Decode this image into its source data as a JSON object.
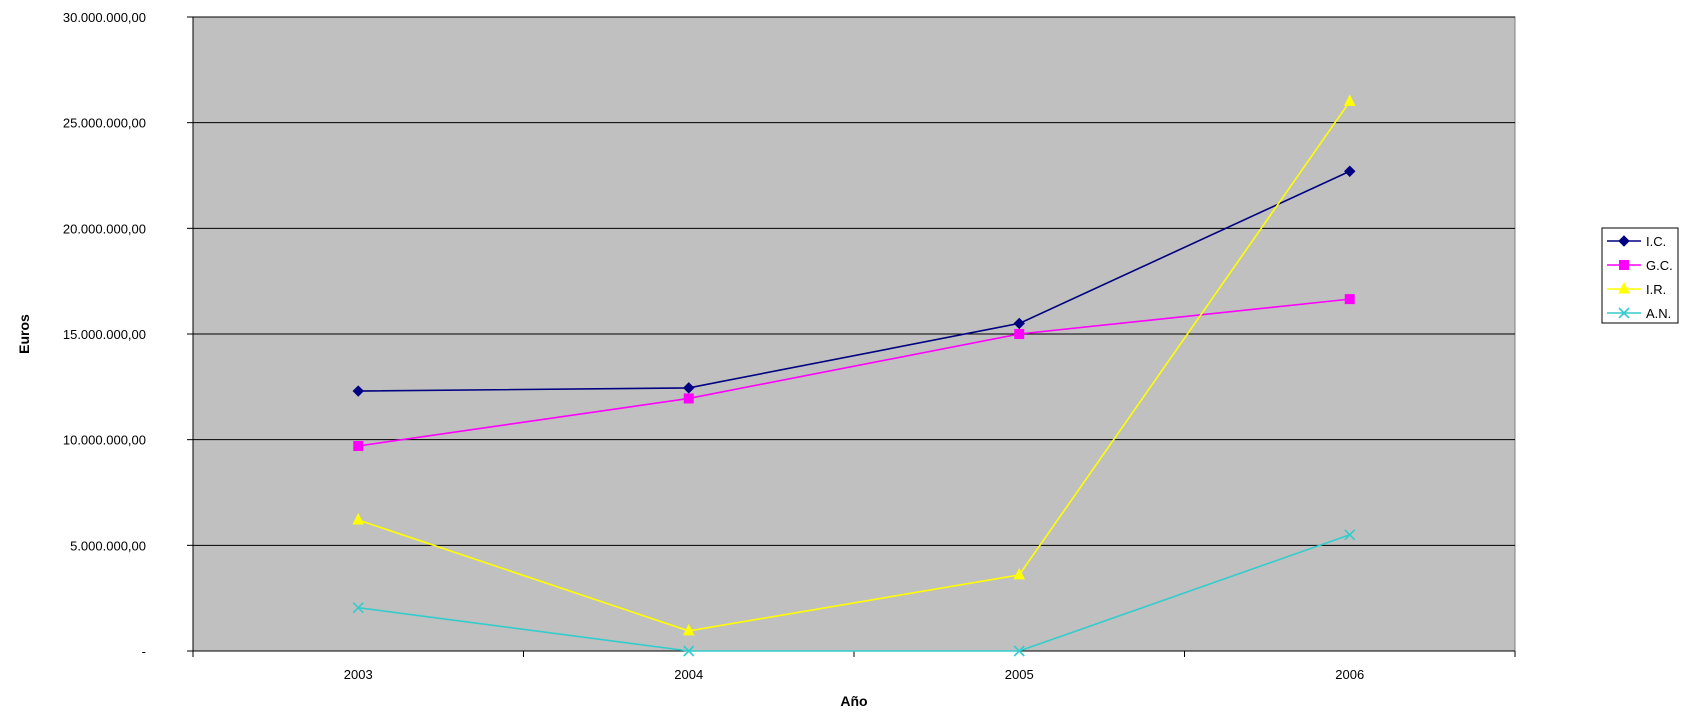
{
  "chart_data": {
    "type": "line",
    "title": "",
    "xlabel": "Año",
    "ylabel": "Euros",
    "x": [
      "2003",
      "2004",
      "2005",
      "2006"
    ],
    "ylim": [
      0,
      30000000
    ],
    "yticks": [
      0,
      5000000,
      10000000,
      15000000,
      20000000,
      25000000,
      30000000
    ],
    "ytick_labels": [
      "-",
      "5.000.000,00",
      "10.000.000,00",
      "15.000.000,00",
      "20.000.000,00",
      "25.000.000,00",
      "30.000.000,00"
    ],
    "grid": true,
    "legend_position": "right",
    "plot_background": "#C0C0C0",
    "series": [
      {
        "name": "I.C.",
        "color": "#000080",
        "marker": "diamond",
        "values": [
          12300000,
          12450000,
          15500000,
          22700000
        ]
      },
      {
        "name": "G.C.",
        "color": "#FF00FF",
        "marker": "square",
        "values": [
          9700000,
          11950000,
          15000000,
          16650000
        ]
      },
      {
        "name": "I.R.",
        "color": "#FFFF00",
        "marker": "triangle",
        "values": [
          6200000,
          950000,
          3600000,
          26000000
        ]
      },
      {
        "name": "A.N.",
        "color": "#33CCCC",
        "marker": "x",
        "values": [
          2050000,
          0,
          0,
          5500000
        ]
      }
    ]
  }
}
